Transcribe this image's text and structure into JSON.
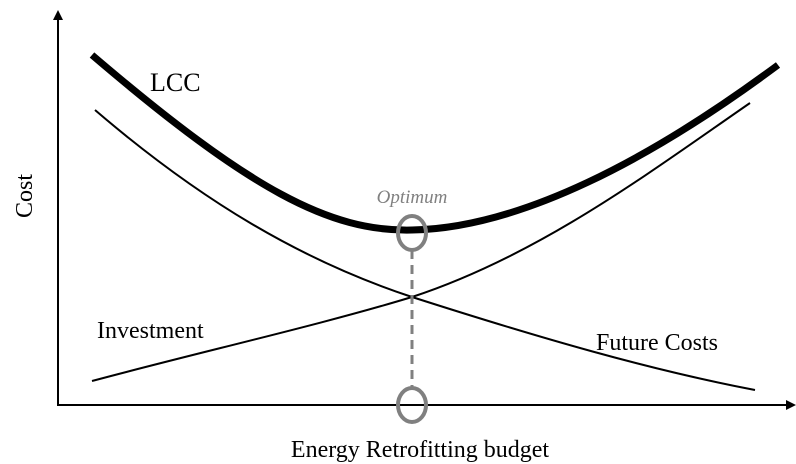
{
  "y_axis_label": "Cost",
  "x_axis_label": "Energy Retrofitting budget",
  "curves": {
    "lcc": "LCC",
    "investment": "Investment",
    "future": "Future Costs"
  },
  "optimum": "Optimum"
}
